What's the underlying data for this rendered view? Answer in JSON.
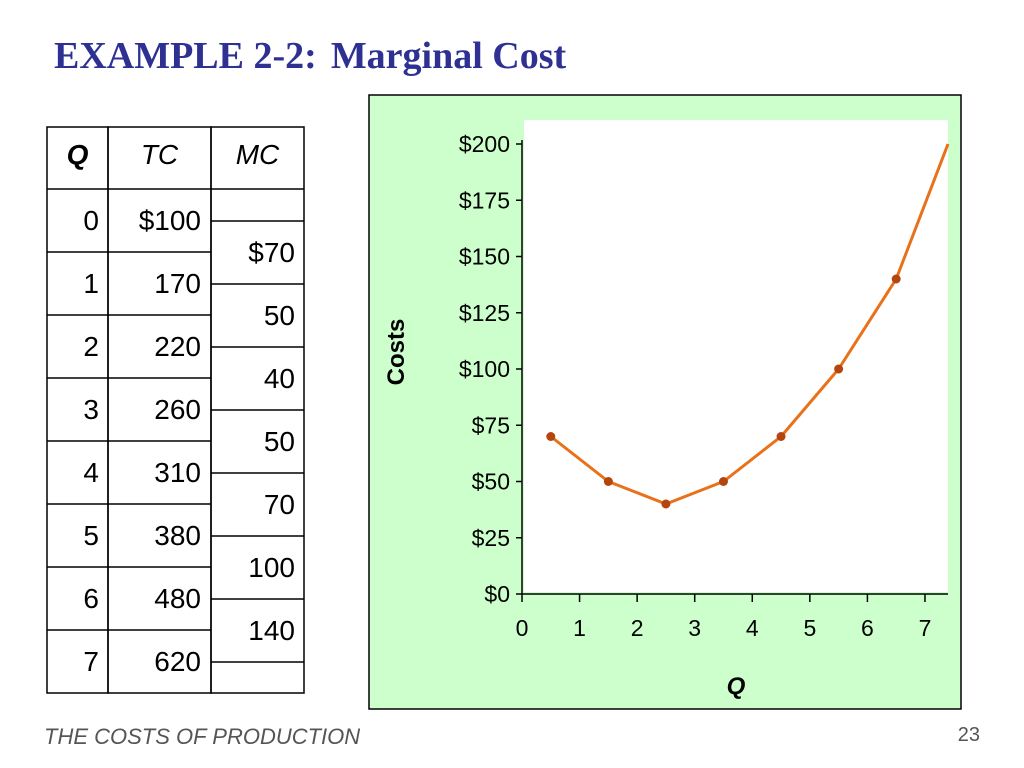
{
  "slide": {
    "title_prefix": "EXAMPLE 2-2:",
    "title_main": "Marginal Cost",
    "footer": "THE COSTS OF PRODUCTION",
    "page_number": "23"
  },
  "table": {
    "headers": [
      "Q",
      "TC",
      "MC"
    ],
    "rows": [
      {
        "q": "0",
        "tc": "$100"
      },
      {
        "q": "1",
        "tc": "170"
      },
      {
        "q": "2",
        "tc": "220"
      },
      {
        "q": "3",
        "tc": "260"
      },
      {
        "q": "4",
        "tc": "310"
      },
      {
        "q": "5",
        "tc": "380"
      },
      {
        "q": "6",
        "tc": "480"
      },
      {
        "q": "7",
        "tc": "620"
      }
    ],
    "mc": [
      "$70",
      "50",
      "40",
      "50",
      "70",
      "100",
      "140"
    ]
  },
  "chart_data": {
    "type": "line",
    "xlabel": "Q",
    "ylabel": "Costs",
    "xlim": [
      0,
      7.4
    ],
    "ylim": [
      0,
      200
    ],
    "x_ticks": [
      "0",
      "1",
      "2",
      "3",
      "4",
      "5",
      "6",
      "7"
    ],
    "y_ticks": [
      "$0",
      "$25",
      "$50",
      "$75",
      "$100",
      "$125",
      "$150",
      "$175",
      "$200"
    ],
    "points": [
      {
        "x": 0.5,
        "y": 70
      },
      {
        "x": 1.5,
        "y": 50
      },
      {
        "x": 2.5,
        "y": 40
      },
      {
        "x": 3.5,
        "y": 50
      },
      {
        "x": 4.5,
        "y": 70
      },
      {
        "x": 5.5,
        "y": 100
      },
      {
        "x": 6.5,
        "y": 140
      }
    ],
    "curve_extension": {
      "x": 7.4,
      "y": 200
    },
    "grid": false,
    "colors": {
      "panel": "#ccffcc",
      "plot_bg": "#ffffff",
      "line": "#e8711a",
      "marker": "#b5450f"
    }
  }
}
